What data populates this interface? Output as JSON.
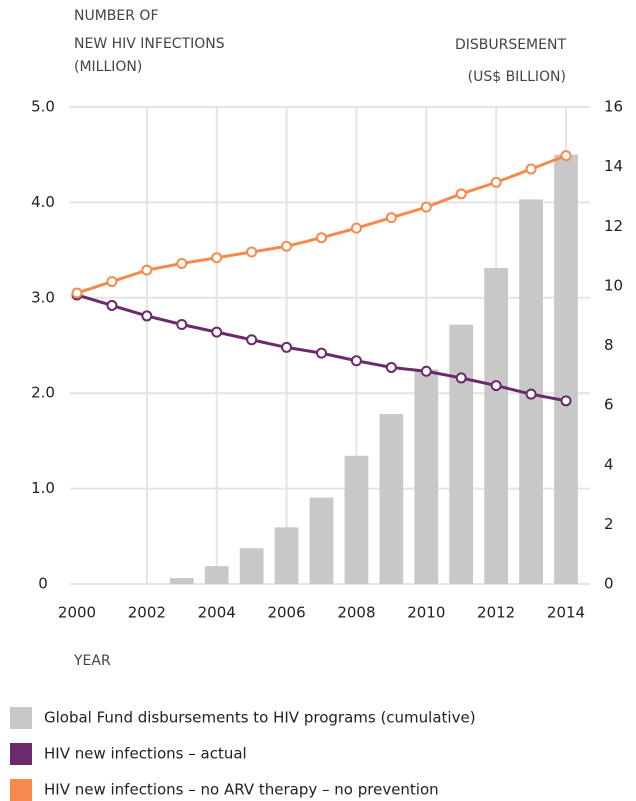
{
  "chart_data": {
    "type": "combo",
    "y_label": [
      "NUMBER OF",
      "NEW HIV INFECTIONS",
      "(MILLION)"
    ],
    "y2_label": [
      "DISBURSEMENT",
      "(US$ BILLION)"
    ],
    "x_label": "YEAR",
    "x": [
      2000,
      2001,
      2002,
      2003,
      2004,
      2005,
      2006,
      2007,
      2008,
      2009,
      2010,
      2011,
      2012,
      2013,
      2014
    ],
    "xlim": [
      2000,
      2014
    ],
    "xticks": [
      2000,
      2002,
      2004,
      2006,
      2008,
      2010,
      2012,
      2014
    ],
    "ylim": [
      0,
      5
    ],
    "yticks": [
      0,
      {
        "value": 1,
        "label": "1.0"
      },
      {
        "value": 2,
        "label": "2.0"
      },
      {
        "value": 3,
        "label": "3.0"
      },
      {
        "value": 4,
        "label": "4.0"
      },
      {
        "value": 5,
        "label": "5.0"
      }
    ],
    "y2lim": [
      0,
      16
    ],
    "y2ticks": [
      0,
      2,
      4,
      6,
      8,
      10,
      12,
      14,
      16
    ],
    "grid": true,
    "series": [
      {
        "name": "Global Fund disbursements to HIV programs (cumulative)",
        "type": "bar",
        "axis": "y2",
        "color": "#c8c8c8",
        "values": [
          0,
          0,
          0,
          0.2,
          0.6,
          1.2,
          1.9,
          2.9,
          4.3,
          5.7,
          7.2,
          8.7,
          10.6,
          12.9,
          14.4
        ]
      },
      {
        "name": "HIV new infections – actual",
        "type": "line",
        "color": "#6b2a6b",
        "values": [
          3.03,
          2.92,
          2.81,
          2.72,
          2.64,
          2.56,
          2.48,
          2.42,
          2.34,
          2.27,
          2.23,
          2.16,
          2.08,
          1.99,
          1.92
        ]
      },
      {
        "name": "HIV new infections – no ARV therapy – no prevention",
        "type": "line",
        "color": "#f58a4b",
        "values": [
          3.05,
          3.17,
          3.29,
          3.36,
          3.42,
          3.48,
          3.54,
          3.63,
          3.73,
          3.84,
          3.95,
          4.09,
          4.21,
          4.35,
          4.49
        ]
      }
    ]
  }
}
